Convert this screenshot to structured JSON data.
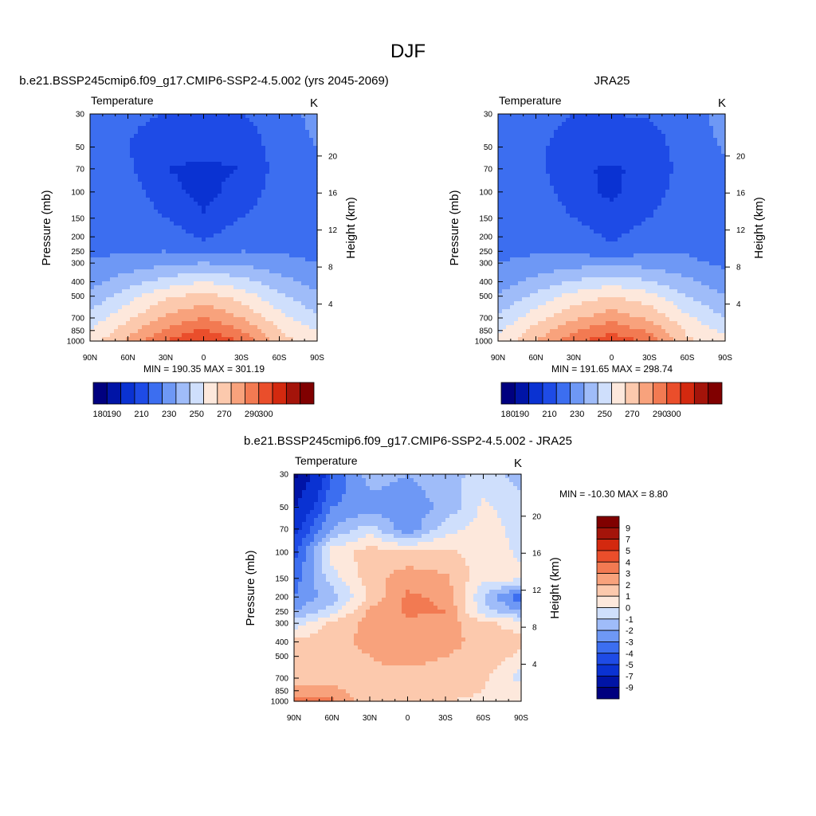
{
  "page_title": "DJF",
  "palette": {
    "temperature": [
      "#00007f",
      "#0014a6",
      "#0a32d2",
      "#1e4be6",
      "#3c6ef0",
      "#6e98f5",
      "#9fbcf9",
      "#cfdffc",
      "#fde8dc",
      "#fcc9ad",
      "#f8a27c",
      "#f27a52",
      "#ea4e2b",
      "#d3290f",
      "#a4140a",
      "#800000"
    ],
    "difference": [
      "#00007f",
      "#0014a6",
      "#0a32d2",
      "#1e4be6",
      "#3c6ef0",
      "#6e98f5",
      "#9fbcf9",
      "#cfdffc",
      "#fde8dc",
      "#fcc9ad",
      "#f8a27c",
      "#f27a52",
      "#ea4e2b",
      "#d3290f",
      "#a4140a",
      "#800000"
    ]
  },
  "icons": {
    "colorbar": "boxed-color-swatches"
  },
  "panels": [
    {
      "title": "b.e21.BSSP245cmip6.f09_g17.CMIP6-SSP2-4.5.002 (yrs 2045-2069)",
      "left_label": "Temperature",
      "right_label": "K",
      "ylabel": "Pressure (mb)",
      "y2label": "Height (km)",
      "stats": "MIN = 190.35  MAX = 301.19",
      "colorbar_labels": [
        "180",
        "190",
        "210",
        "230",
        "250",
        "270",
        "290",
        "300"
      ]
    },
    {
      "title": "JRA25",
      "left_label": "Temperature",
      "right_label": "K",
      "ylabel": "Pressure (mb)",
      "y2label": "Height (km)",
      "stats": "MIN = 191.65  MAX = 298.74",
      "colorbar_labels": [
        "180",
        "190",
        "210",
        "230",
        "250",
        "270",
        "290",
        "300"
      ]
    },
    {
      "title": "b.e21.BSSP245cmip6.f09_g17.CMIP6-SSP2-4.5.002 - JRA25",
      "left_label": "Temperature",
      "right_label": "K",
      "ylabel": "Pressure (mb)",
      "y2label": "Height (km)",
      "stats": "MIN = -10.30  MAX =    8.80",
      "colorbar_labels": [
        "9",
        "7",
        "5",
        "4",
        "3",
        "2",
        "1",
        "0",
        "-1",
        "-2",
        "-3",
        "-4",
        "-5",
        "-7",
        "-9"
      ]
    }
  ],
  "chart_data": [
    {
      "type": "heatmap",
      "title": "b.e21.BSSP245cmip6.f09_g17.CMIP6-SSP2-4.5.002 (yrs 2045-2069)",
      "field": "Temperature",
      "units": "K",
      "xlabel": "",
      "ylabel": "Pressure (mb)",
      "y2label": "Height (km)",
      "x_ticks": [
        "90N",
        "60N",
        "30N",
        "0",
        "30S",
        "60S",
        "90S"
      ],
      "y_ticks": [
        30,
        50,
        70,
        100,
        150,
        200,
        250,
        300,
        400,
        500,
        700,
        850,
        1000
      ],
      "y2_ticks": [
        4,
        8,
        12,
        16,
        20
      ],
      "ylim": [
        1000,
        30
      ],
      "y_scale": "log-pressure",
      "levels": [
        180,
        190,
        200,
        210,
        220,
        230,
        240,
        250,
        260,
        270,
        280,
        290,
        300
      ],
      "colorbar_labels": [
        "180",
        "190",
        "210",
        "230",
        "250",
        "270",
        "290",
        "300"
      ],
      "grid_lat": [
        90,
        60,
        30,
        0,
        -30,
        -60,
        -90
      ],
      "grid_p": [
        30,
        50,
        70,
        100,
        150,
        200,
        250,
        300,
        400,
        500,
        700,
        850,
        1000
      ],
      "grid_values": [
        [
          218,
          212,
          210,
          210,
          210,
          214,
          224
        ],
        [
          216,
          210,
          204,
          203,
          204,
          214,
          220
        ],
        [
          214,
          212,
          200,
          198,
          200,
          214,
          216
        ],
        [
          214,
          216,
          203,
          197,
          204,
          215,
          215
        ],
        [
          215,
          218,
          210,
          201,
          210,
          216,
          214
        ],
        [
          216,
          218,
          217,
          208,
          217,
          217,
          216
        ],
        [
          218,
          219,
          220,
          215,
          220,
          219,
          218
        ],
        [
          221,
          224,
          228,
          230,
          228,
          223,
          220
        ],
        [
          226,
          236,
          244,
          250,
          244,
          234,
          226
        ],
        [
          232,
          246,
          258,
          264,
          256,
          242,
          232
        ],
        [
          244,
          258,
          272,
          280,
          270,
          254,
          242
        ],
        [
          250,
          266,
          282,
          292,
          280,
          260,
          250
        ],
        [
          255,
          272,
          290,
          300,
          290,
          264,
          256
        ]
      ],
      "min": 190.35,
      "max": 301.19
    },
    {
      "type": "heatmap",
      "title": "JRA25",
      "field": "Temperature",
      "units": "K",
      "xlabel": "",
      "ylabel": "Pressure (mb)",
      "y2label": "Height (km)",
      "x_ticks": [
        "90N",
        "60N",
        "30N",
        "0",
        "30S",
        "60S",
        "90S"
      ],
      "y_ticks": [
        30,
        50,
        70,
        100,
        150,
        200,
        250,
        300,
        400,
        500,
        700,
        850,
        1000
      ],
      "y2_ticks": [
        4,
        8,
        12,
        16,
        20
      ],
      "ylim": [
        1000,
        30
      ],
      "y_scale": "log-pressure",
      "levels": [
        180,
        190,
        200,
        210,
        220,
        230,
        240,
        250,
        260,
        270,
        280,
        290,
        300
      ],
      "colorbar_labels": [
        "180",
        "190",
        "210",
        "230",
        "250",
        "270",
        "290",
        "300"
      ],
      "grid_lat": [
        90,
        60,
        30,
        0,
        -30,
        -60,
        -90
      ],
      "grid_p": [
        30,
        50,
        70,
        100,
        150,
        200,
        250,
        300,
        400,
        500,
        700,
        850,
        1000
      ],
      "grid_values": [
        [
          218,
          214,
          210,
          210,
          211,
          215,
          224
        ],
        [
          216,
          212,
          205,
          204,
          205,
          215,
          221
        ],
        [
          215,
          213,
          201,
          199,
          202,
          215,
          218
        ],
        [
          214,
          216,
          204,
          198,
          205,
          216,
          216
        ],
        [
          215,
          218,
          210,
          203,
          210,
          217,
          215
        ],
        [
          216,
          218,
          216,
          208,
          216,
          218,
          216
        ],
        [
          217,
          219,
          219,
          213,
          219,
          219,
          217
        ],
        [
          220,
          223,
          226,
          228,
          226,
          222,
          218
        ],
        [
          225,
          233,
          241,
          246,
          241,
          232,
          225
        ],
        [
          230,
          243,
          254,
          260,
          254,
          240,
          230
        ],
        [
          242,
          256,
          268,
          276,
          268,
          252,
          240
        ],
        [
          248,
          264,
          279,
          288,
          278,
          258,
          248
        ],
        [
          252,
          270,
          287,
          297,
          287,
          262,
          254
        ]
      ],
      "min": 191.65,
      "max": 298.74
    },
    {
      "type": "heatmap",
      "title": "b.e21.BSSP245cmip6.f09_g17.CMIP6-SSP2-4.5.002 - JRA25",
      "field": "Temperature",
      "units": "K",
      "xlabel": "",
      "ylabel": "Pressure (mb)",
      "y2label": "Height (km)",
      "x_ticks": [
        "90N",
        "60N",
        "30N",
        "0",
        "30S",
        "60S",
        "90S"
      ],
      "y_ticks": [
        30,
        50,
        70,
        100,
        150,
        200,
        250,
        300,
        400,
        500,
        700,
        850,
        1000
      ],
      "y2_ticks": [
        4,
        8,
        12,
        16,
        20
      ],
      "ylim": [
        1000,
        30
      ],
      "y_scale": "log-pressure",
      "levels": [
        -9,
        -7,
        -5,
        -4,
        -3,
        -2,
        -1,
        0,
        1,
        2,
        3,
        4,
        5,
        7,
        9
      ],
      "colorbar_labels": [
        "9",
        "7",
        "5",
        "4",
        "3",
        "2",
        "1",
        "0",
        "-1",
        "-2",
        "-3",
        "-4",
        "-5",
        "-7",
        "-9"
      ],
      "grid_lat": [
        90,
        60,
        30,
        0,
        -30,
        -60,
        -90
      ],
      "grid_p": [
        30,
        50,
        70,
        100,
        150,
        200,
        250,
        300,
        400,
        500,
        700,
        850,
        1000
      ],
      "grid_values": [
        [
          -9.5,
          -4,
          -1.5,
          -2,
          -1.5,
          -0.5,
          -1.5
        ],
        [
          -7,
          -3,
          -2.5,
          -2.5,
          -1.8,
          0.2,
          -0.6
        ],
        [
          -5.5,
          -2,
          -0.5,
          -2.8,
          -0.4,
          0.5,
          -0.4
        ],
        [
          -4.5,
          0.5,
          1.5,
          1.2,
          1.2,
          0.6,
          -0.2
        ],
        [
          -3.5,
          -0.5,
          1.5,
          2.6,
          2.2,
          0.4,
          0.2
        ],
        [
          -3,
          -1.5,
          1.2,
          3.2,
          2.8,
          -1,
          -4
        ],
        [
          -2,
          -0.5,
          2.2,
          3.2,
          3,
          -0.5,
          -2
        ],
        [
          -0.5,
          1.2,
          2.4,
          2.8,
          2.6,
          1.2,
          0.6
        ],
        [
          1.2,
          1.8,
          2.2,
          2.6,
          2.4,
          1.6,
          1.2
        ],
        [
          1.5,
          1.6,
          2,
          2.4,
          2,
          1.6,
          0.8
        ],
        [
          1.5,
          1.8,
          1.8,
          1.6,
          1.6,
          1.2,
          -0.5
        ],
        [
          2.6,
          2.2,
          1.6,
          1.4,
          1.4,
          1,
          0.6
        ],
        [
          3.5,
          3.2,
          1.2,
          1,
          1,
          0.8,
          0.6
        ]
      ],
      "min": -10.3,
      "max": 8.8
    }
  ]
}
